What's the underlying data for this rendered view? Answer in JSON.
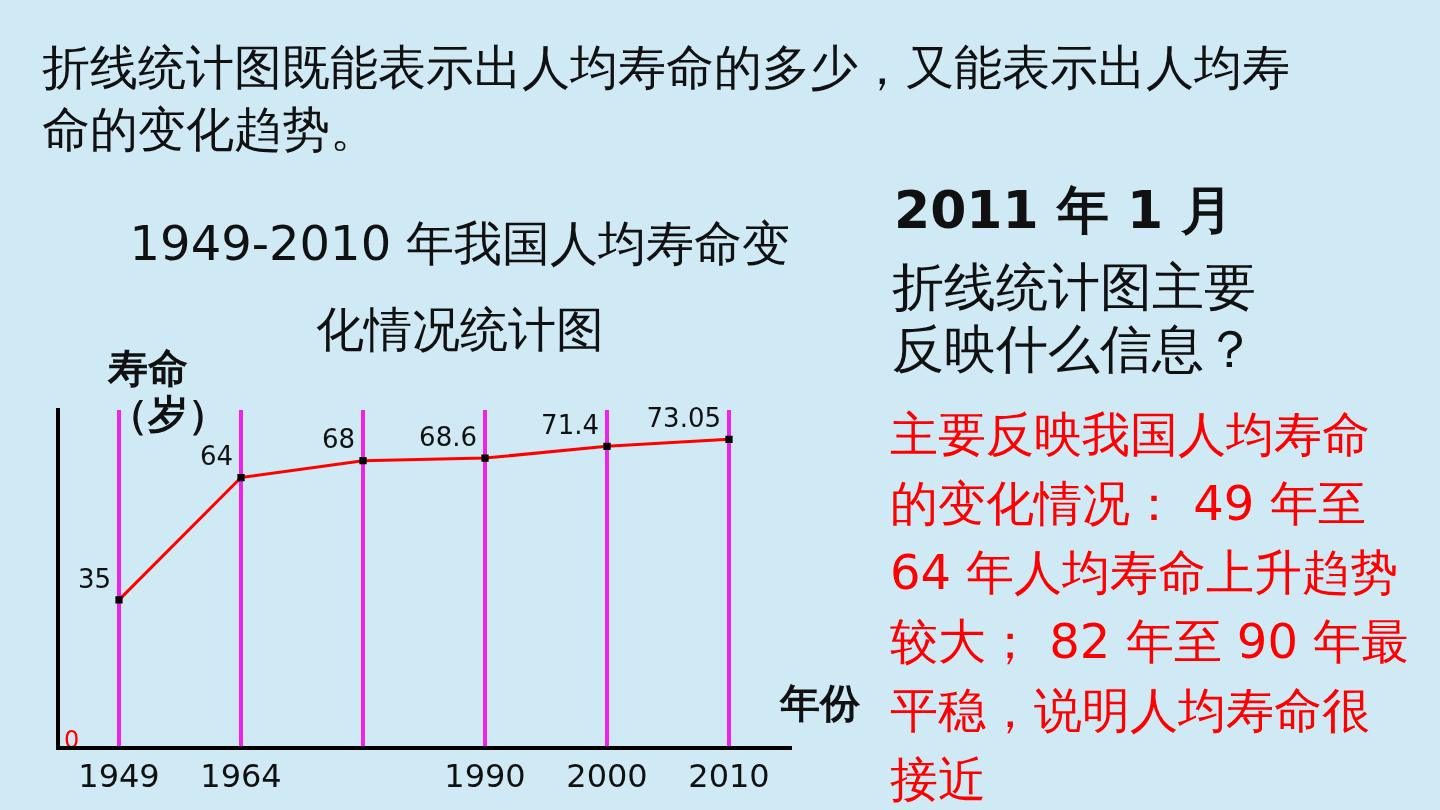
{
  "chart_data": {
    "type": "line",
    "title": "1949-2010 年我国人均寿命变化情况统计图",
    "xlabel": "年份",
    "ylabel": "寿命（岁）",
    "categories": [
      "1949",
      "1964",
      null,
      "1990",
      "2000",
      "2010"
    ],
    "series": [
      {
        "color": "#ff0000",
        "values": [
          35,
          64,
          68,
          68.6,
          71.4,
          73.05
        ]
      }
    ],
    "grid": "x",
    "legend": false,
    "marker": "square",
    "line_style": "solid",
    "data_labels": true,
    "annotations": [
      "折线统计图既能表示出人均寿命的多少，又能表示出人均寿命的变化趋势。",
      "2011 年 1 月",
      "折线统计图主要反映什么信息？",
      "主要反映我国人均寿命的变化情况： 49 年至 64 年人均寿命上升趋势较大； 82 年至 90 年最平稳，说明人均寿命很接近",
      "0"
    ]
  }
}
